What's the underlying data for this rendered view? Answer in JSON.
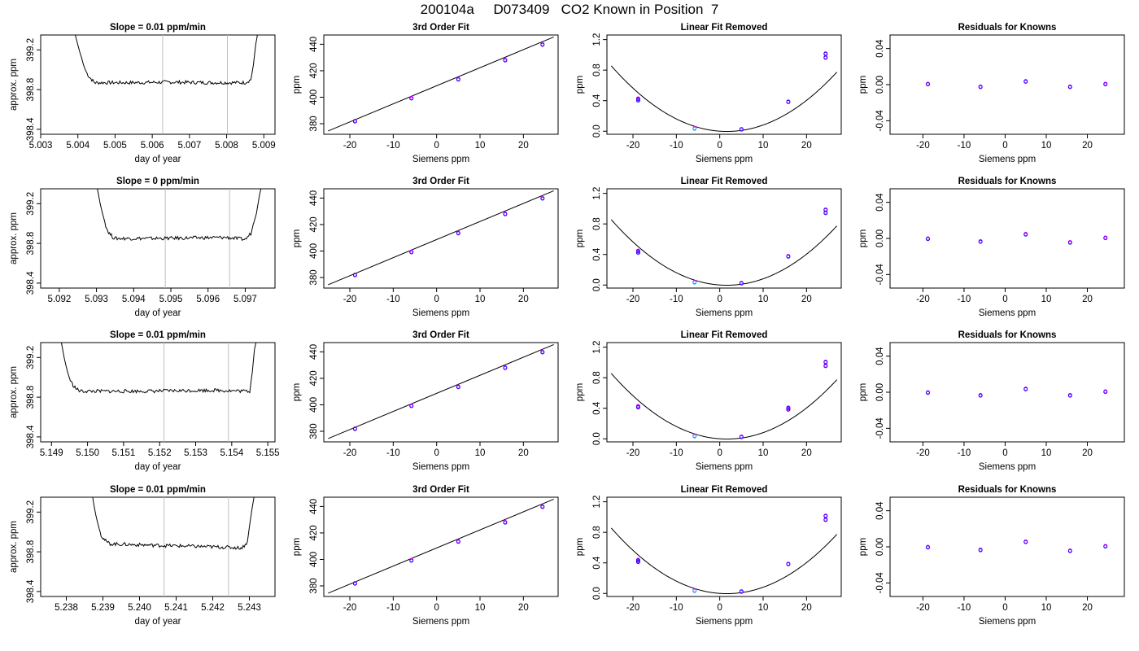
{
  "figure_title": "200104a     D073409   CO2 Known in Position  7",
  "colors": {
    "line": "#000000",
    "vline": "#bebebe",
    "point_a": "#0000ff",
    "point_b": "#ff00ff",
    "point_c": "#00bfff"
  },
  "chart_data": [
    {
      "row": 1,
      "panels": [
        {
          "type": "line",
          "title": "Slope =  0.01  ppm/min",
          "xlabel": "day of year",
          "ylabel": "approx. ppm",
          "xlim": [
            5.003,
            5.0093
          ],
          "ylim": [
            398.35,
            399.35
          ],
          "xticks": [
            5.003,
            5.004,
            5.005,
            5.006,
            5.007,
            5.008,
            5.009
          ],
          "yticks": [
            398.4,
            398.8,
            399.2
          ],
          "vlines": [
            5.00628,
            5.00802
          ],
          "x": [
            5.0039,
            5.00395,
            5.004,
            5.00405,
            5.0041,
            5.00415,
            5.0042,
            5.00425,
            5.0043,
            5.00435,
            5.0044,
            5.00445,
            5.0045,
            5.0055,
            5.0065,
            5.0075,
            5.0085,
            5.00865,
            5.00872,
            5.00878,
            5.00885
          ],
          "y": [
            399.4,
            399.32,
            399.25,
            399.18,
            399.12,
            399.05,
            399.0,
            398.96,
            398.93,
            398.91,
            398.89,
            398.87,
            398.87,
            398.87,
            398.875,
            398.87,
            398.87,
            398.9,
            399.05,
            399.25,
            399.4
          ]
        },
        {
          "type": "scatter",
          "title": "3rd Order Fit",
          "xlabel": "Siemens ppm",
          "ylabel": "ppm",
          "xlim": [
            -26,
            28
          ],
          "ylim": [
            372,
            447
          ],
          "xticks": [
            -20,
            -10,
            0,
            10,
            20
          ],
          "yticks": [
            380,
            400,
            420,
            440
          ],
          "fit": {
            "x": [
              -25,
              27
            ],
            "y": [
              374.5,
              445.5
            ]
          },
          "points": [
            [
              -18.8,
              382.2
            ],
            [
              -5.8,
              399.5
            ],
            [
              5.0,
              413.8
            ],
            [
              15.8,
              428.3
            ],
            [
              24.4,
              440.1
            ]
          ]
        },
        {
          "type": "scatter",
          "title": "Linear Fit Removed",
          "xlabel": "Siemens ppm",
          "ylabel": "ppm",
          "xlim": [
            -26,
            28
          ],
          "ylim": [
            -0.04,
            1.26
          ],
          "xticks": [
            -20,
            -10,
            0,
            10,
            20
          ],
          "yticks": [
            0.0,
            0.4,
            0.8,
            1.2
          ],
          "fit": {
            "a": 0.00121,
            "b": -0.004
          },
          "points": [
            [
              -18.8,
              0.43
            ],
            [
              -5.8,
              0.04
            ],
            [
              5.0,
              0.03
            ],
            [
              15.8,
              0.39
            ],
            [
              24.4,
              0.97
            ],
            [
              24.4,
              1.02
            ],
            [
              -18.8,
              0.41
            ]
          ]
        },
        {
          "type": "scatter",
          "title": "Residuals for Knowns",
          "xlabel": "Siemens ppm",
          "ylabel": "ppm",
          "xlim": [
            -28,
            29
          ],
          "ylim": [
            -0.055,
            0.055
          ],
          "xticks": [
            -20,
            -10,
            0,
            10,
            20
          ],
          "yticks": [
            -0.04,
            0.0,
            0.04
          ],
          "points": [
            [
              -18.8,
              0.001
            ],
            [
              -6.0,
              -0.002
            ],
            [
              5.0,
              0.004
            ],
            [
              15.8,
              -0.002
            ],
            [
              24.4,
              0.001
            ]
          ]
        }
      ]
    },
    {
      "row": 2,
      "panels": [
        {
          "type": "line",
          "title": "Slope =  0  ppm/min",
          "xlabel": "day of year",
          "ylabel": "approx. ppm",
          "xlim": [
            5.0915,
            5.0978
          ],
          "ylim": [
            398.35,
            399.35
          ],
          "xticks": [
            5.092,
            5.093,
            5.094,
            5.095,
            5.096,
            5.097
          ],
          "yticks": [
            398.4,
            398.8,
            399.2
          ],
          "vlines": [
            5.09485,
            5.09658
          ],
          "x": [
            5.093,
            5.09305,
            5.0931,
            5.09315,
            5.0932,
            5.09325,
            5.0933,
            5.09335,
            5.0934,
            5.09345,
            5.0935,
            5.0945,
            5.0955,
            5.0965,
            5.097,
            5.09715,
            5.0973,
            5.09738,
            5.09745
          ],
          "y": [
            399.4,
            399.3,
            399.2,
            399.12,
            399.05,
            398.98,
            398.93,
            398.9,
            398.88,
            398.86,
            398.85,
            398.85,
            398.855,
            398.86,
            398.84,
            398.9,
            399.1,
            399.28,
            399.4
          ]
        },
        {
          "type": "scatter",
          "title": "3rd Order Fit",
          "xlabel": "Siemens ppm",
          "ylabel": "ppm",
          "xlim": [
            -26,
            28
          ],
          "ylim": [
            372,
            447
          ],
          "xticks": [
            -20,
            -10,
            0,
            10,
            20
          ],
          "yticks": [
            380,
            400,
            420,
            440
          ],
          "fit": {
            "x": [
              -25,
              27
            ],
            "y": [
              374.5,
              445.5
            ]
          },
          "points": [
            [
              -18.8,
              382.2
            ],
            [
              -5.8,
              399.5
            ],
            [
              5.0,
              413.8
            ],
            [
              15.8,
              428.3
            ],
            [
              24.4,
              440.1
            ]
          ]
        },
        {
          "type": "scatter",
          "title": "Linear Fit Removed",
          "xlabel": "Siemens ppm",
          "ylabel": "ppm",
          "xlim": [
            -26,
            28
          ],
          "ylim": [
            -0.04,
            1.26
          ],
          "xticks": [
            -20,
            -10,
            0,
            10,
            20
          ],
          "yticks": [
            0.0,
            0.4,
            0.8,
            1.2
          ],
          "fit": {
            "a": 0.00121,
            "b": -0.004
          },
          "points": [
            [
              -18.8,
              0.45
            ],
            [
              -5.8,
              0.04
            ],
            [
              5.0,
              0.03
            ],
            [
              15.8,
              0.38
            ],
            [
              24.4,
              0.95
            ],
            [
              24.4,
              0.99
            ],
            [
              -18.8,
              0.43
            ]
          ]
        },
        {
          "type": "scatter",
          "title": "Residuals for Knowns",
          "xlabel": "Siemens ppm",
          "ylabel": "ppm",
          "xlim": [
            -28,
            29
          ],
          "ylim": [
            -0.055,
            0.055
          ],
          "xticks": [
            -20,
            -10,
            0,
            10,
            20
          ],
          "yticks": [
            -0.04,
            0.0,
            0.04
          ],
          "points": [
            [
              -18.8,
              0.0
            ],
            [
              -6.0,
              -0.003
            ],
            [
              5.0,
              0.005
            ],
            [
              15.8,
              -0.004
            ],
            [
              24.4,
              0.001
            ]
          ]
        }
      ]
    },
    {
      "row": 3,
      "panels": [
        {
          "type": "line",
          "title": "Slope =  0.01  ppm/min",
          "xlabel": "day of year",
          "ylabel": "approx. ppm",
          "xlim": [
            5.1487,
            5.1552
          ],
          "ylim": [
            398.35,
            399.35
          ],
          "xticks": [
            5.149,
            5.15,
            5.151,
            5.152,
            5.153,
            5.154,
            5.155
          ],
          "yticks": [
            398.4,
            398.8,
            399.2
          ],
          "vlines": [
            5.15212,
            5.15391
          ],
          "x": [
            5.14925,
            5.1493,
            5.14935,
            5.1494,
            5.14945,
            5.1495,
            5.14955,
            5.1496,
            5.14965,
            5.1497,
            5.14975,
            5.1498,
            5.1505,
            5.1515,
            5.1525,
            5.1535,
            5.1545,
            5.15457,
            5.15463,
            5.1547
          ],
          "y": [
            399.4,
            399.3,
            399.2,
            399.12,
            399.05,
            398.99,
            398.95,
            398.92,
            398.9,
            398.88,
            398.87,
            398.86,
            398.86,
            398.86,
            398.865,
            398.87,
            398.86,
            399.05,
            399.28,
            399.4
          ]
        },
        {
          "type": "scatter",
          "title": "3rd Order Fit",
          "xlabel": "Siemens ppm",
          "ylabel": "ppm",
          "xlim": [
            -26,
            28
          ],
          "ylim": [
            372,
            447
          ],
          "xticks": [
            -20,
            -10,
            0,
            10,
            20
          ],
          "yticks": [
            380,
            400,
            420,
            440
          ],
          "fit": {
            "x": [
              -25,
              27
            ],
            "y": [
              374.5,
              445.5
            ]
          },
          "points": [
            [
              -18.8,
              382.2
            ],
            [
              -5.8,
              399.5
            ],
            [
              5.0,
              413.8
            ],
            [
              15.8,
              428.3
            ],
            [
              24.4,
              440.1
            ]
          ]
        },
        {
          "type": "scatter",
          "title": "Linear Fit Removed",
          "xlabel": "Siemens ppm",
          "ylabel": "ppm",
          "xlim": [
            -26,
            28
          ],
          "ylim": [
            -0.04,
            1.26
          ],
          "xticks": [
            -20,
            -10,
            0,
            10,
            20
          ],
          "yticks": [
            0.0,
            0.4,
            0.8,
            1.2
          ],
          "fit": {
            "a": 0.00121,
            "b": -0.004
          },
          "points": [
            [
              -18.8,
              0.43
            ],
            [
              -5.8,
              0.04
            ],
            [
              5.0,
              0.03
            ],
            [
              15.8,
              0.39
            ],
            [
              24.4,
              0.96
            ],
            [
              24.4,
              1.01
            ],
            [
              -18.8,
              0.42
            ],
            [
              15.8,
              0.41
            ]
          ]
        },
        {
          "type": "scatter",
          "title": "Residuals for Knowns",
          "xlabel": "Siemens ppm",
          "ylabel": "ppm",
          "xlim": [
            -28,
            29
          ],
          "ylim": [
            -0.055,
            0.055
          ],
          "xticks": [
            -20,
            -10,
            0,
            10,
            20
          ],
          "yticks": [
            -0.04,
            0.0,
            0.04
          ],
          "points": [
            [
              -18.8,
              0.0
            ],
            [
              -6.0,
              -0.003
            ],
            [
              5.0,
              0.004
            ],
            [
              15.8,
              -0.003
            ],
            [
              24.4,
              0.001
            ]
          ]
        }
      ]
    },
    {
      "row": 4,
      "panels": [
        {
          "type": "line",
          "title": "Slope =  0.01  ppm/min",
          "xlabel": "day of year",
          "ylabel": "approx. ppm",
          "xlim": [
            5.2373,
            5.2437
          ],
          "ylim": [
            398.35,
            399.35
          ],
          "xticks": [
            5.238,
            5.239,
            5.24,
            5.241,
            5.242,
            5.243
          ],
          "yticks": [
            398.4,
            398.8,
            399.2
          ],
          "vlines": [
            5.24067,
            5.24243
          ],
          "x": [
            5.2387,
            5.23875,
            5.2388,
            5.23885,
            5.2389,
            5.23895,
            5.239,
            5.23905,
            5.2391,
            5.23915,
            5.2392,
            5.24,
            5.241,
            5.242,
            5.2428,
            5.24295,
            5.243,
            5.24308,
            5.24315
          ],
          "y": [
            399.4,
            399.28,
            399.18,
            399.1,
            399.03,
            398.97,
            398.94,
            398.92,
            398.9,
            398.89,
            398.88,
            398.87,
            398.86,
            398.85,
            398.84,
            398.9,
            399.05,
            399.25,
            399.4
          ]
        },
        {
          "type": "scatter",
          "title": "3rd Order Fit",
          "xlabel": "Siemens ppm",
          "ylabel": "ppm",
          "xlim": [
            -26,
            28
          ],
          "ylim": [
            372,
            447
          ],
          "xticks": [
            -20,
            -10,
            0,
            10,
            20
          ],
          "yticks": [
            380,
            400,
            420,
            440
          ],
          "fit": {
            "x": [
              -25,
              27
            ],
            "y": [
              374.5,
              445.5
            ]
          },
          "points": [
            [
              -18.8,
              382.2
            ],
            [
              -5.8,
              399.5
            ],
            [
              5.0,
              413.8
            ],
            [
              15.8,
              428.3
            ],
            [
              24.4,
              440.1
            ]
          ]
        },
        {
          "type": "scatter",
          "title": "Linear Fit Removed",
          "xlabel": "Siemens ppm",
          "ylabel": "ppm",
          "xlim": [
            -26,
            28
          ],
          "ylim": [
            -0.04,
            1.26
          ],
          "xticks": [
            -20,
            -10,
            0,
            10,
            20
          ],
          "yticks": [
            0.0,
            0.4,
            0.8,
            1.2
          ],
          "fit": {
            "a": 0.00121,
            "b": -0.004
          },
          "points": [
            [
              -18.8,
              0.42
            ],
            [
              -5.8,
              0.04
            ],
            [
              5.0,
              0.03
            ],
            [
              15.8,
              0.39
            ],
            [
              24.4,
              0.97
            ],
            [
              24.4,
              1.02
            ],
            [
              -18.8,
              0.44
            ]
          ]
        },
        {
          "type": "scatter",
          "title": "Residuals for Knowns",
          "xlabel": "Siemens ppm",
          "ylabel": "ppm",
          "xlim": [
            -28,
            29
          ],
          "ylim": [
            -0.055,
            0.055
          ],
          "xticks": [
            -20,
            -10,
            0,
            10,
            20
          ],
          "yticks": [
            -0.04,
            0.0,
            0.04
          ],
          "points": [
            [
              -18.8,
              0.0
            ],
            [
              -6.0,
              -0.003
            ],
            [
              5.0,
              0.006
            ],
            [
              15.8,
              -0.004
            ],
            [
              24.4,
              0.001
            ]
          ]
        }
      ]
    }
  ]
}
